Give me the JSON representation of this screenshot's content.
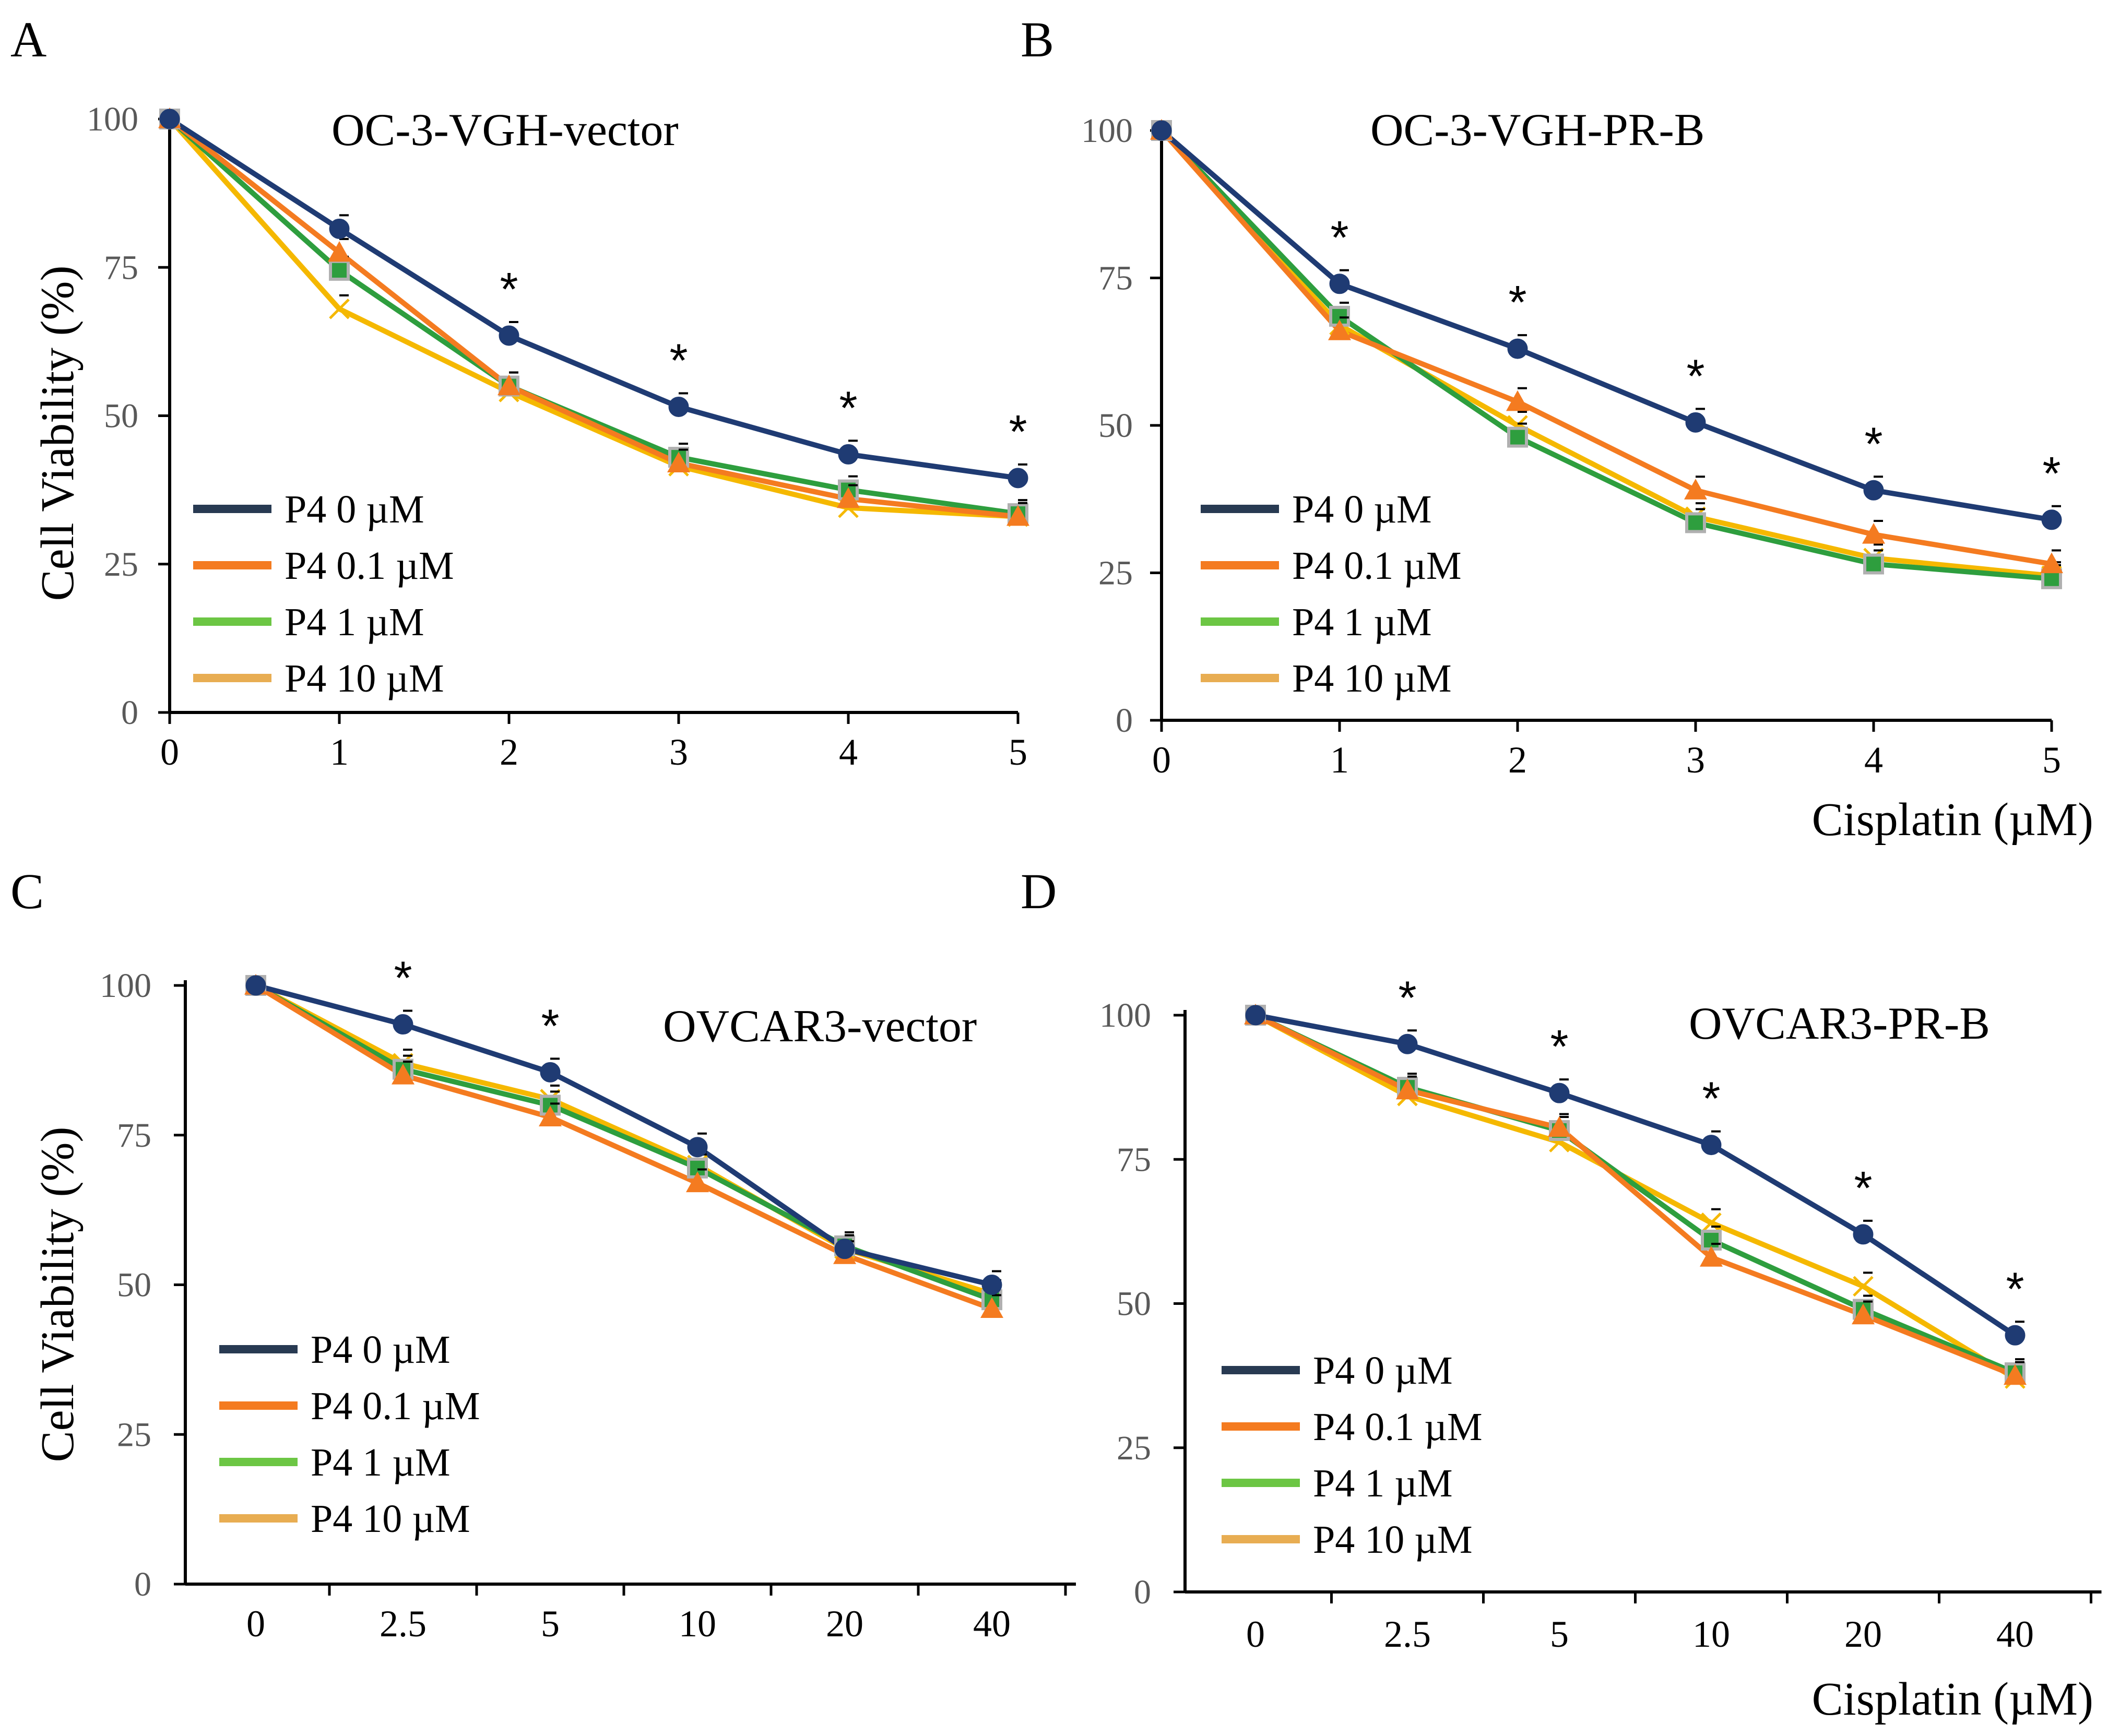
{
  "colors": {
    "P4 0 µM": "#1f3b73",
    "P4 0.1 µM": "#f47b20",
    "P4 1 µM": "#2e9e3e",
    "P4 10 µM": "#f5b800",
    "legend": {
      "P4 0 µM": "#283a52",
      "P4 0.1 µM": "#f47b20",
      "P4 1 µM": "#6cc644",
      "P4 10 µM": "#e8ad52"
    }
  },
  "chart_data": [
    {
      "panel": "A",
      "type": "line",
      "title": "OC-3-VGH-vector",
      "ylabel": "Cell Viability (%)",
      "xlabel": "",
      "ylim": [
        0,
        100
      ],
      "yticks": [
        "0",
        "25",
        "50",
        "75",
        "100"
      ],
      "categories": [
        "0",
        "1",
        "2",
        "3",
        "4",
        "5"
      ],
      "series": [
        {
          "name": "P4 0 µM",
          "values": [
            100,
            81.5,
            63.5,
            51.5,
            43.5,
            39.5
          ]
        },
        {
          "name": "P4 0.1 µM",
          "values": [
            100,
            77.5,
            55,
            42,
            36,
            33
          ]
        },
        {
          "name": "P4 1 µM",
          "values": [
            100,
            74.5,
            55,
            43,
            37.5,
            33.5
          ]
        },
        {
          "name": "P4 10 µM",
          "values": [
            100,
            68,
            54,
            41.5,
            34.5,
            33
          ]
        }
      ],
      "significance": [
        "",
        "",
        "*",
        "*",
        "*",
        "*"
      ]
    },
    {
      "panel": "B",
      "type": "line",
      "title": "OC-3-VGH-PR-B",
      "ylabel": "",
      "xlabel": "Cisplatin (µM)",
      "ylim": [
        0,
        100
      ],
      "yticks": [
        "0",
        "25",
        "50",
        "75",
        "100"
      ],
      "categories": [
        "0",
        "1",
        "2",
        "3",
        "4",
        "5"
      ],
      "series": [
        {
          "name": "P4 0 µM",
          "values": [
            100,
            74,
            63,
            50.5,
            39,
            34
          ]
        },
        {
          "name": "P4 0.1 µM",
          "values": [
            100,
            66,
            54,
            39,
            31.5,
            26.5
          ]
        },
        {
          "name": "P4 1 µM",
          "values": [
            100,
            68.5,
            48,
            33.5,
            26.5,
            24
          ]
        },
        {
          "name": "P4 10 µM",
          "values": [
            100,
            67,
            50,
            34.5,
            27.5,
            24.5
          ]
        }
      ],
      "significance": [
        "",
        "*",
        "*",
        "*",
        "*",
        "*"
      ]
    },
    {
      "panel": "C",
      "type": "line",
      "title": "OVCAR3-vector",
      "ylabel": "Cell Viability (%)",
      "xlabel": "",
      "ylim": [
        0,
        100
      ],
      "yticks": [
        "0",
        "25",
        "50",
        "75",
        "100"
      ],
      "categories": [
        "0",
        "2.5",
        "5",
        "10",
        "20",
        "40"
      ],
      "series": [
        {
          "name": "P4 0 µM",
          "values": [
            100,
            93.5,
            85.5,
            73,
            56,
            50
          ]
        },
        {
          "name": "P4 0.1 µM",
          "values": [
            100,
            85,
            78,
            67,
            55,
            46
          ]
        },
        {
          "name": "P4 1 µM",
          "values": [
            100,
            86,
            80,
            69.5,
            56.5,
            47.5
          ]
        },
        {
          "name": "P4 10 µM",
          "values": [
            100,
            87,
            81,
            70,
            56,
            48.5
          ]
        }
      ],
      "significance": [
        "",
        "*",
        "*",
        "",
        "",
        ""
      ]
    },
    {
      "panel": "D",
      "type": "line",
      "title": "OVCAR3-PR-B",
      "ylabel": "",
      "xlabel": "Cisplatin (µM)",
      "ylim": [
        0,
        100
      ],
      "yticks": [
        "0",
        "25",
        "50",
        "75",
        "100"
      ],
      "categories": [
        "0",
        "2.5",
        "5",
        "10",
        "20",
        "40"
      ],
      "series": [
        {
          "name": "P4 0 µM",
          "values": [
            100,
            95,
            86.5,
            77.5,
            62,
            44.5
          ]
        },
        {
          "name": "P4 0.1 µM",
          "values": [
            100,
            87,
            80.5,
            58,
            48,
            37.5
          ]
        },
        {
          "name": "P4 1 µM",
          "values": [
            100,
            87.5,
            80,
            61,
            49,
            38
          ]
        },
        {
          "name": "P4 10 µM",
          "values": [
            100,
            86,
            78,
            64,
            53,
            37
          ]
        }
      ],
      "significance": [
        "",
        "*",
        "*",
        "*",
        "*",
        "*"
      ]
    }
  ]
}
